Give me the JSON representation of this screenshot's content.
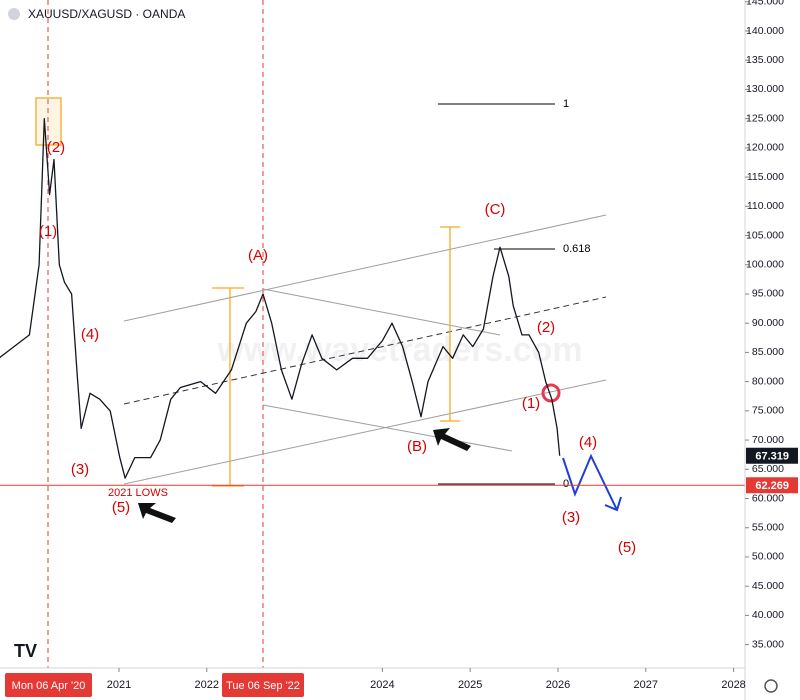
{
  "chart_data": {
    "type": "line",
    "title": "XAUUSD/XAGUSD · OANDA",
    "watermark": "www.wavetraders.com",
    "color": "#131722",
    "x": [
      2019.63,
      2019.98,
      2020.09,
      2020.15,
      2020.21,
      2020.26,
      2020.32,
      2020.38,
      2020.46,
      2020.53,
      2020.57,
      2020.67,
      2020.78,
      2020.9,
      2021.01,
      2021.07,
      2021.18,
      2021.36,
      2021.47,
      2021.59,
      2021.7,
      2021.93,
      2022.1,
      2022.28,
      2022.45,
      2022.56,
      2022.64,
      2022.74,
      2022.85,
      2022.97,
      2023.08,
      2023.2,
      2023.31,
      2023.48,
      2023.66,
      2023.83,
      2024.0,
      2024.11,
      2024.23,
      2024.34,
      2024.44,
      2024.52,
      2024.69,
      2024.8,
      2024.92,
      2025.03,
      2025.15,
      2025.26,
      2025.34,
      2025.44,
      2025.49,
      2025.59,
      2025.67,
      2025.78,
      2025.86,
      2025.93,
      2025.99,
      2026.02
    ],
    "values": [
      84,
      88,
      100,
      125,
      112,
      118,
      100,
      97,
      95,
      80,
      72,
      78,
      77,
      75,
      67,
      63.5,
      67,
      67,
      70,
      77,
      79,
      80,
      78,
      82,
      90,
      92,
      95,
      90,
      82,
      77,
      83,
      88,
      84,
      82,
      84,
      84,
      87,
      90,
      86,
      80,
      74,
      80,
      86,
      84,
      88,
      86,
      89,
      98,
      103,
      98,
      93,
      88,
      88,
      85,
      80,
      77,
      72,
      67.319
    ],
    "xlim": [
      2019.645,
      2028.13
    ],
    "xticks": [
      2021,
      2022,
      2024,
      2025,
      2026,
      2027,
      2028
    ],
    "ylim": [
      31,
      145.3
    ],
    "yticks": [
      {
        "value": 35,
        "label": "35.000"
      },
      {
        "value": 40,
        "label": "40.000"
      },
      {
        "value": 45,
        "label": "45.000"
      },
      {
        "value": 50,
        "label": "50.000"
      },
      {
        "value": 55,
        "label": "55.000"
      },
      {
        "value": 60,
        "label": "60.000"
      },
      {
        "value": 65,
        "label": "65.000"
      },
      {
        "value": 70,
        "label": "70.000"
      },
      {
        "value": 75,
        "label": "75.000"
      },
      {
        "value": 80,
        "label": "80.000"
      },
      {
        "value": 85,
        "label": "85.000"
      },
      {
        "value": 90,
        "label": "90.000"
      },
      {
        "value": 95,
        "label": "95.000"
      },
      {
        "value": 100,
        "label": "100.000"
      },
      {
        "value": 105,
        "label": "105.000"
      },
      {
        "value": 110,
        "label": "110.000"
      },
      {
        "value": 115,
        "label": "115.000"
      },
      {
        "value": 120,
        "label": "120.000"
      },
      {
        "value": 125,
        "label": "125.000"
      },
      {
        "value": 130,
        "label": "130.000"
      },
      {
        "value": 135,
        "label": "135.000"
      },
      {
        "value": 140,
        "label": "140.000"
      },
      {
        "value": 145,
        "label": "145.000"
      }
    ],
    "last_price": 67.319,
    "level_price": 62.269,
    "fib_levels": [
      1,
      0.618,
      0
    ],
    "date_markers": [
      "Mon 06 Apr '20",
      "Tue 06 Sep '22"
    ],
    "annotations": [
      "(2)",
      "(1)",
      "(4)",
      "(3)",
      "(5)",
      "(A)",
      "(B)",
      "(C)",
      "(2)",
      "(1)",
      "(4)",
      "(3)",
      "(5)",
      "2021 LOWS"
    ],
    "annotation_color": "#d50000"
  }
}
